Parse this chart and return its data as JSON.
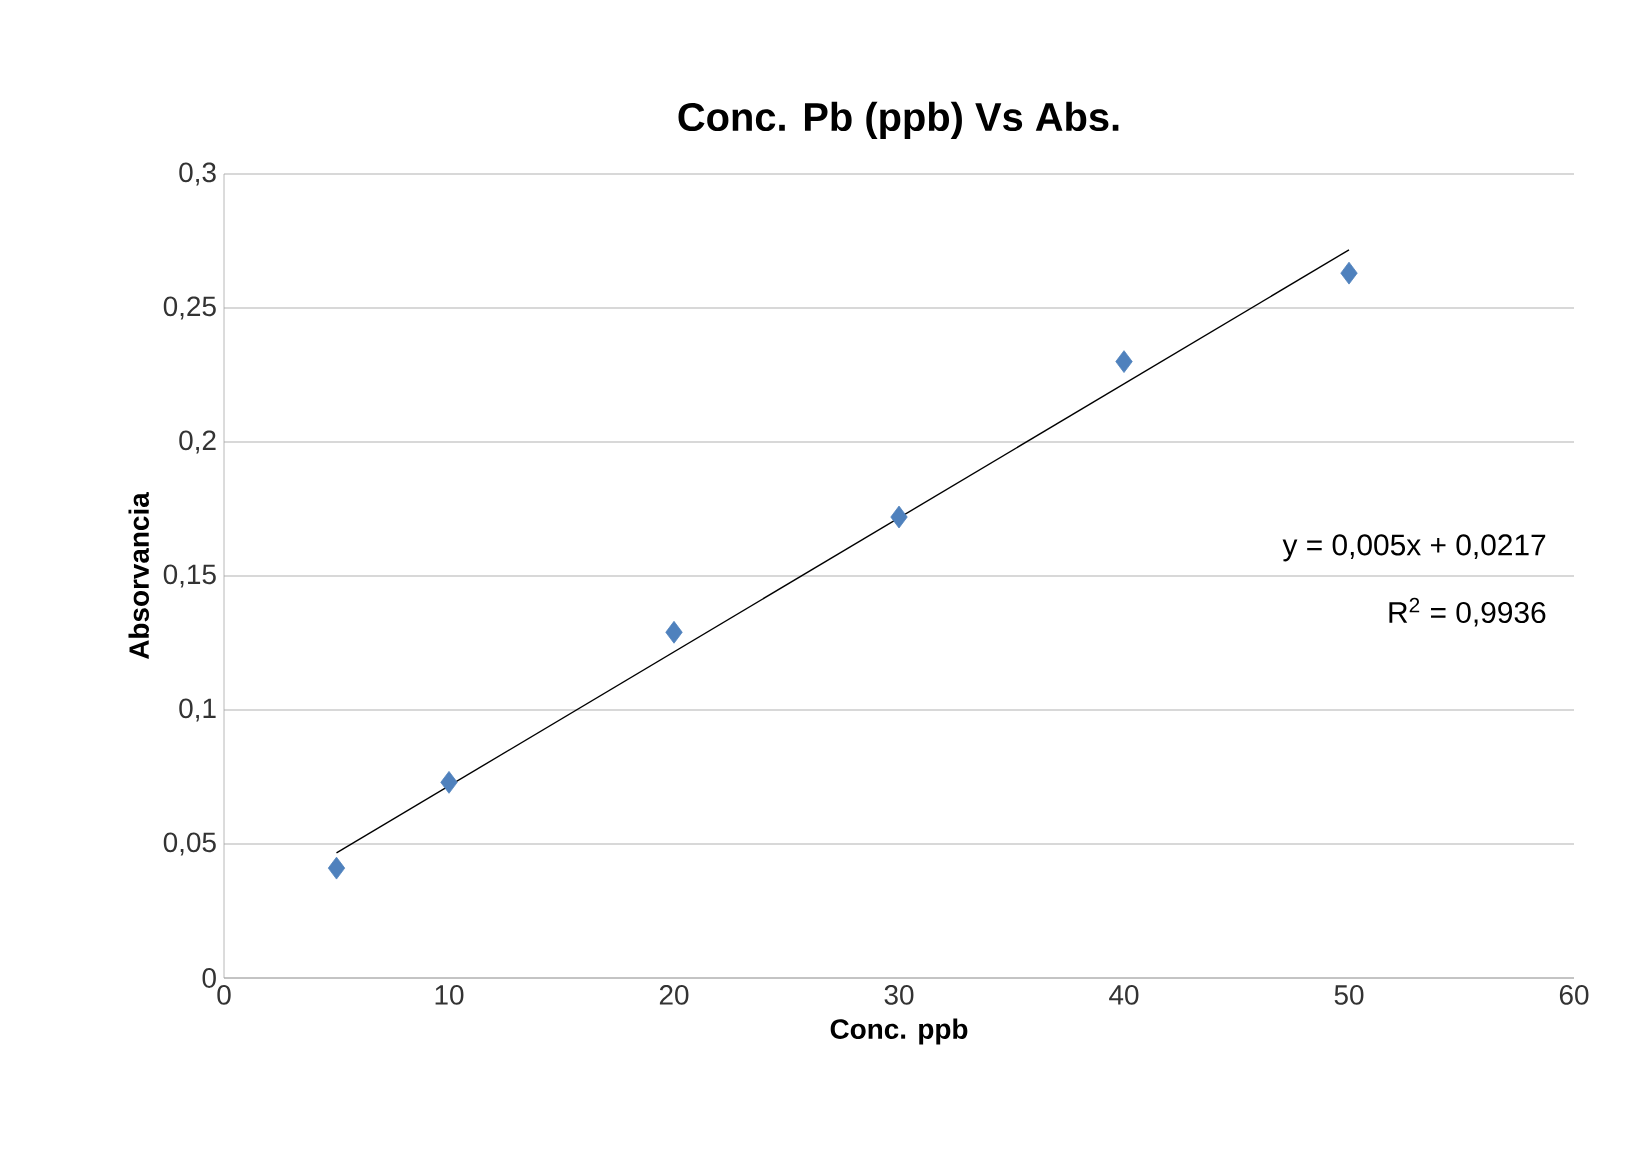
{
  "chart_data": {
    "type": "scatter",
    "title": "Conc. Pb (ppb) Vs Abs.",
    "xlabel": "Conc. ppb",
    "ylabel": "Absorvancia",
    "series": [
      {
        "marker": "diamond",
        "color": "#4f81bd",
        "x": [
          5,
          10,
          20,
          30,
          40,
          50
        ],
        "values": [
          0.041,
          0.073,
          0.129,
          0.172,
          0.23,
          0.263
        ]
      },
      {
        "type": "line",
        "marker": "none",
        "color": "#000000",
        "x": [
          5,
          50
        ],
        "values": [
          0.0467,
          0.2717
        ]
      }
    ],
    "xlim": [
      0,
      60
    ],
    "xticks": [
      0,
      10,
      20,
      30,
      40,
      50,
      60
    ],
    "ylim": [
      0,
      0.3
    ],
    "yticks": [
      0,
      {
        "value": 0.05,
        "label": "0,05"
      },
      {
        "value": 0.1,
        "label": "0,1"
      },
      {
        "value": 0.15,
        "label": "0,15"
      },
      {
        "value": 0.2,
        "label": "0,2"
      },
      {
        "value": 0.25,
        "label": "0,25"
      },
      {
        "value": 0.3,
        "label": "0,3"
      }
    ],
    "grid": "y",
    "annotations": [
      "y = 0,005x + 0,0217",
      "R$^{2}$ = 0,9936"
    ]
  }
}
